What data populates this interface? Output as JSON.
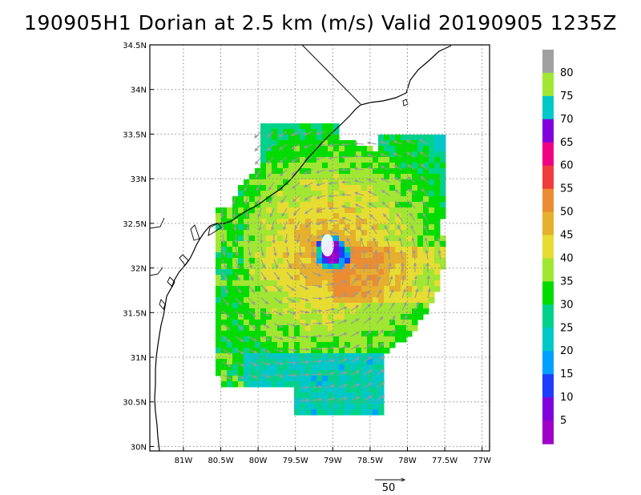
{
  "title": "190905H1 Dorian at 2.5 km (m/s) Valid 20190905 1235Z",
  "map": {
    "lon_range": [
      -81.45,
      -76.9
    ],
    "lat_range": [
      29.95,
      34.5
    ],
    "lon_ticks": [
      "81W",
      "80.5W",
      "80W",
      "79.5W",
      "79W",
      "78.5W",
      "78W",
      "77.5W",
      "77W"
    ],
    "lat_ticks": [
      "34.5N",
      "34N",
      "33.5N",
      "33N",
      "32.5N",
      "32N",
      "31.5N",
      "31N",
      "30.5N",
      "30N"
    ],
    "grid": true,
    "storm_center": {
      "lon": -79.05,
      "lat": 32.2
    }
  },
  "colorbar": {
    "labels": [
      "80",
      "75",
      "70",
      "65",
      "60",
      "55",
      "50",
      "45",
      "40",
      "35",
      "30",
      "25",
      "20",
      "15",
      "10",
      "5"
    ],
    "colors": [
      "#a0a0a0",
      "#a0e632",
      "#00c8c8",
      "#8200dc",
      "#f00082",
      "#f03c3c",
      "#eb8c32",
      "#e6af2d",
      "#e6dc32",
      "#a0e632",
      "#00dc00",
      "#00d28c",
      "#00c8c8",
      "#00a0ff",
      "#1e3cff",
      "#8200dc",
      "#a000c8"
    ]
  },
  "vector_reference": {
    "label": "50"
  }
}
